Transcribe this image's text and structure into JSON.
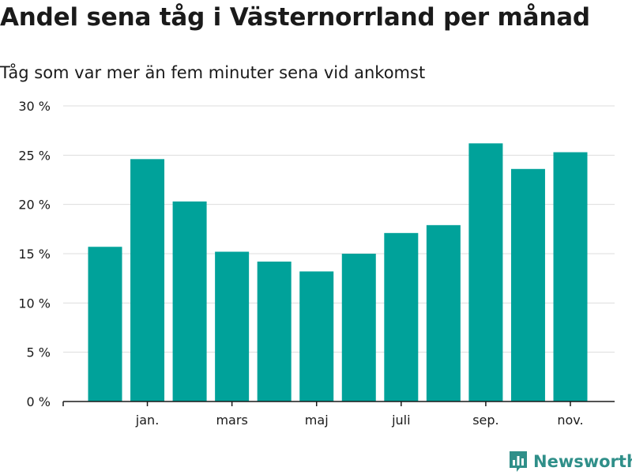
{
  "header": {
    "title": "Andel sena tåg i Västernorrland per månad",
    "subtitle": "Tåg som var mer än fem minuter sena vid ankomst"
  },
  "brand": {
    "name": "Newsworthy",
    "icon": "newsworthy-logo-icon",
    "color": "#2f8f89"
  },
  "chart_data": {
    "type": "bar",
    "title": "Andel sena tåg i Västernorrland per månad",
    "subtitle": "Tåg som var mer än fem minuter sena vid ankomst",
    "xlabel": "",
    "ylabel": "",
    "ylim": [
      0,
      30
    ],
    "yticks": [
      0,
      5,
      10,
      15,
      20,
      25,
      30
    ],
    "ytick_labels": [
      "0 %",
      "5 %",
      "10 %",
      "15 %",
      "20 %",
      "25 %",
      "30 %"
    ],
    "xtick_labels": [
      {
        "label": "jan.",
        "index": 1
      },
      {
        "label": "mars",
        "index": 3
      },
      {
        "label": "maj",
        "index": 5
      },
      {
        "label": "juli",
        "index": 7
      },
      {
        "label": "sep.",
        "index": 9
      },
      {
        "label": "nov.",
        "index": 11
      }
    ],
    "series": [
      {
        "name": "Andel sena tåg",
        "color": "#00a29a",
        "values": [
          15.7,
          24.6,
          20.3,
          15.2,
          14.2,
          13.2,
          15.0,
          17.1,
          17.9,
          26.2,
          23.6,
          25.3
        ]
      }
    ],
    "grid": true,
    "legend": "none"
  }
}
